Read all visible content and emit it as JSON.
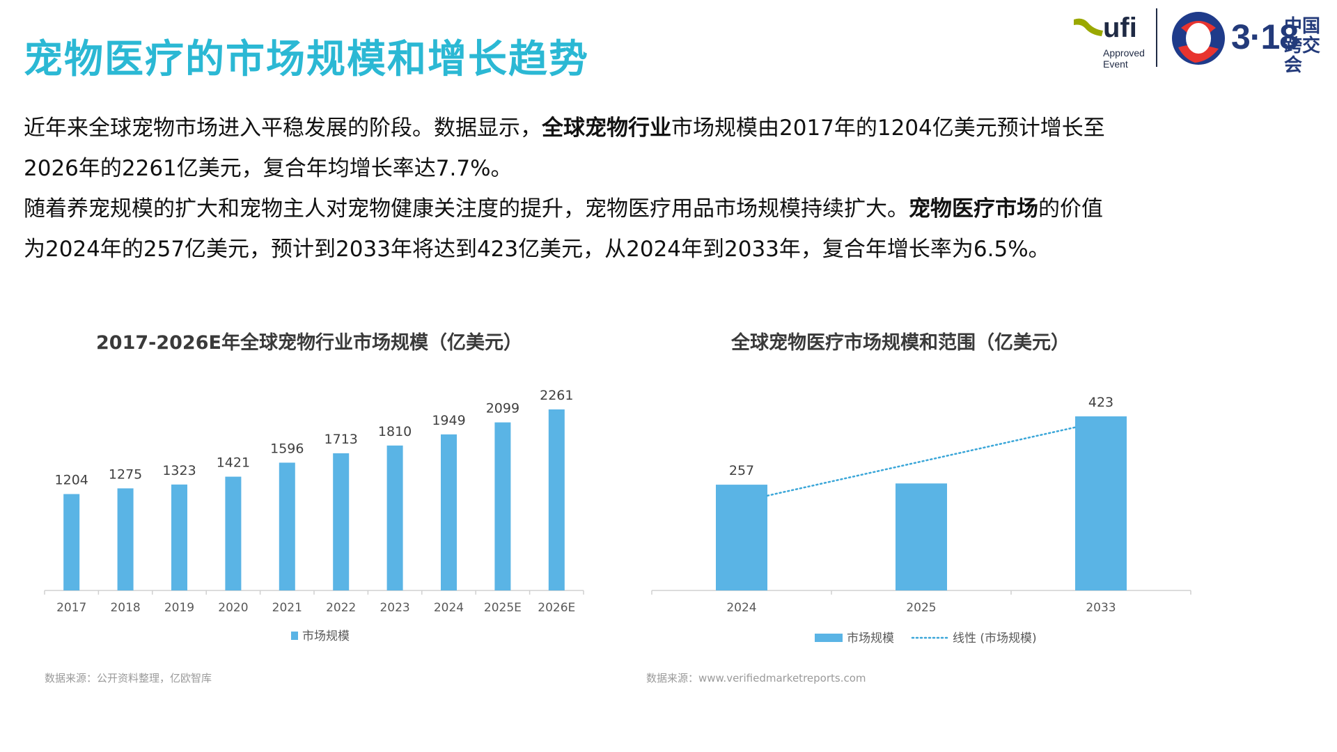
{
  "title": "宠物医疗的市场规模和增长趋势",
  "logos": {
    "ufi": {
      "name": "ufi",
      "sub1": "Approved",
      "sub2": "Event"
    },
    "expo": {
      "number": "3·18",
      "cn_line1": "中国",
      "cn_line2": "跨交会"
    }
  },
  "paragraphs": [
    {
      "before": "近年来全球宠物市场进入平稳发展的阶段。数据显示，",
      "bold": "全球宠物行业",
      "after": "市场规模由2017年的1204亿美元预计增长至"
    },
    {
      "before": "2026年的2261亿美元，复合年均增长率达7.7%。",
      "bold": "",
      "after": ""
    },
    {
      "before": "随着养宠规模的扩大和宠物主人对宠物健康关注度的提升，宠物医疗用品市场规模持续扩大。",
      "bold": "宠物医疗市场",
      "after": "的价值"
    },
    {
      "before": "为2024年的257亿美元，预计到2033年将达到423亿美元，从2024年到2033年，复合年增长率为6.5%。",
      "bold": "",
      "after": ""
    }
  ],
  "colors": {
    "title": "#2bb8d4",
    "bar": "#5ab4e5",
    "trend": "#3aa6d8"
  },
  "chart_data": [
    {
      "type": "bar",
      "title": "2017-2026E年全球宠物行业市场规模（亿美元）",
      "categories": [
        "2017",
        "2018",
        "2019",
        "2020",
        "2021",
        "2022",
        "2023",
        "2024",
        "2025E",
        "2026E"
      ],
      "series": [
        {
          "name": "市场规模",
          "values": [
            1204,
            1275,
            1323,
            1421,
            1596,
            1713,
            1810,
            1949,
            2099,
            2261
          ]
        }
      ],
      "data_labels": [
        "1204",
        "1275",
        "1323",
        "1421",
        "1596",
        "1713",
        "1810",
        "1949",
        "2099",
        "2261"
      ],
      "ylim": [
        0,
        2400
      ],
      "grid": false,
      "legend": "bottom",
      "source": "数据来源：公开资料整理，亿欧智库"
    },
    {
      "type": "bar",
      "title": "全球宠物医疗市场规模和范围（亿美元）",
      "categories": [
        "2024",
        "2025",
        "2033"
      ],
      "series": [
        {
          "name": "市场规模",
          "values": [
            257,
            260,
            423
          ]
        }
      ],
      "data_labels": [
        "257",
        "",
        "423"
      ],
      "trendline": {
        "name": "线性 (市场规模)",
        "style": "dotted"
      },
      "ylim": [
        0,
        450
      ],
      "grid": false,
      "legend": "bottom",
      "source": "数据来源：www.verifiedmarketreports.com"
    }
  ]
}
